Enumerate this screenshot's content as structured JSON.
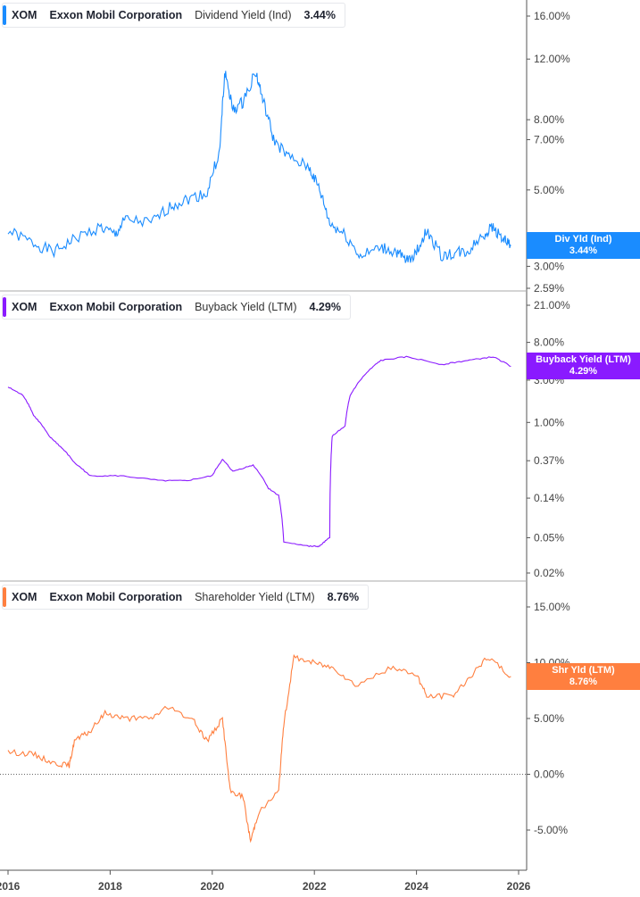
{
  "chart_data": [
    {
      "type": "line",
      "ticker": "XOM",
      "company": "Exxon Mobil Corporation",
      "metric": "Dividend Yield (Ind)",
      "current": "3.44%",
      "tag_label": "Div Yld (Ind)",
      "color": "#1a8cff",
      "scale": "log",
      "ylim": [
        2.59,
        17
      ],
      "yticks": [
        "16.00%",
        "12.00%",
        "8.00%",
        "7.00%",
        "5.00%",
        "3.00%",
        "2.59%"
      ],
      "x": [
        2016.0,
        2016.5,
        2016.9,
        2017.3,
        2017.8,
        2018.1,
        2018.3,
        2018.8,
        2019.2,
        2019.5,
        2019.9,
        2020.15,
        2020.25,
        2020.4,
        2020.6,
        2020.85,
        2021.0,
        2021.2,
        2021.5,
        2021.9,
        2022.1,
        2022.3,
        2022.6,
        2022.9,
        2023.3,
        2023.6,
        2023.8,
        2024.0,
        2024.2,
        2024.5,
        2024.8,
        2025.0,
        2025.3,
        2025.5,
        2025.7,
        2025.85
      ],
      "y": [
        3.8,
        3.5,
        3.3,
        3.6,
        3.9,
        3.7,
        4.1,
        4.0,
        4.5,
        4.7,
        4.9,
        6.5,
        11,
        8.5,
        9.0,
        11,
        9,
        7,
        6.2,
        5.8,
        5.0,
        4.0,
        3.7,
        3.2,
        3.4,
        3.3,
        3.1,
        3.3,
        3.8,
        3.2,
        3.3,
        3.3,
        3.7,
        3.9,
        3.6,
        3.44
      ]
    },
    {
      "type": "line",
      "ticker": "XOM",
      "company": "Exxon Mobil Corporation",
      "metric": "Buyback Yield (LTM)",
      "current": "4.29%",
      "tag_label": "Buyback Yield (LTM)",
      "color": "#8a1aff",
      "scale": "log",
      "ylim": [
        0.018,
        24
      ],
      "yticks": [
        "21.00%",
        "8.00%",
        "3.00%",
        "1.00%",
        "0.37%",
        "0.14%",
        "0.05%",
        "0.02%"
      ],
      "x": [
        2016.0,
        2016.3,
        2016.5,
        2016.8,
        2017.0,
        2017.3,
        2017.6,
        2018.2,
        2019.0,
        2019.5,
        2020.0,
        2020.2,
        2020.4,
        2020.8,
        2021.1,
        2021.3,
        2021.4,
        2021.9,
        2022.1,
        2022.3,
        2022.35,
        2022.6,
        2022.7,
        2023.0,
        2023.3,
        2023.8,
        2024.5,
        2025.0,
        2025.5,
        2025.85
      ],
      "y": [
        2.5,
        2.0,
        1.2,
        0.7,
        0.55,
        0.35,
        0.25,
        0.25,
        0.22,
        0.22,
        0.25,
        0.38,
        0.28,
        0.33,
        0.18,
        0.15,
        0.045,
        0.04,
        0.04,
        0.05,
        0.7,
        0.9,
        2.0,
        3.5,
        5.0,
        5.5,
        4.5,
        5.0,
        5.5,
        4.29
      ]
    },
    {
      "type": "line",
      "ticker": "XOM",
      "company": "Exxon Mobil Corporation",
      "metric": "Shareholder Yield (LTM)",
      "current": "8.76%",
      "tag_label": "Shr Yld (LTM)",
      "color": "#ff7f3f",
      "scale": "linear",
      "ylim": [
        -7,
        16
      ],
      "yticks": [
        "15.00%",
        "10.00%",
        "5.00%",
        "0.00%",
        "-5.00%"
      ],
      "x": [
        2016.0,
        2016.5,
        2016.9,
        2017.2,
        2017.3,
        2017.6,
        2017.9,
        2018.3,
        2018.8,
        2019.1,
        2019.6,
        2019.9,
        2020.2,
        2020.35,
        2020.6,
        2020.75,
        2020.9,
        2021.3,
        2021.4,
        2021.6,
        2022.0,
        2022.4,
        2022.8,
        2023.5,
        2024.0,
        2024.2,
        2024.7,
        2025.0,
        2025.4,
        2025.85
      ],
      "y": [
        2.0,
        1.8,
        1.0,
        0.8,
        3.0,
        3.8,
        5.5,
        5.0,
        5.0,
        6.0,
        5.0,
        3.0,
        5.0,
        -1.5,
        -2.0,
        -6.0,
        -3.5,
        -1.5,
        4.5,
        10.5,
        10.0,
        9.5,
        8.0,
        9.5,
        9.0,
        7.0,
        7.0,
        8.5,
        10.5,
        8.76
      ]
    }
  ],
  "xaxis": {
    "ticks": [
      "2016",
      "2018",
      "2020",
      "2022",
      "2024",
      "2026"
    ]
  }
}
